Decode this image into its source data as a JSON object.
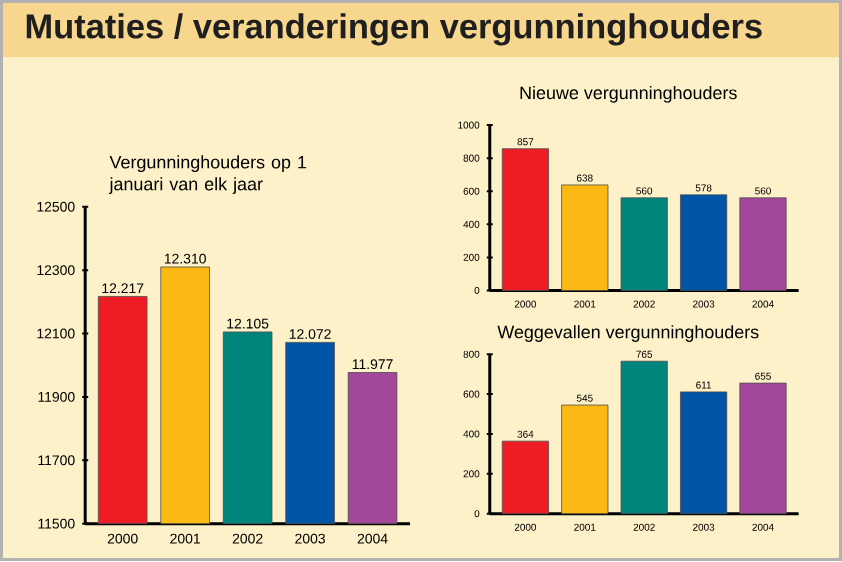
{
  "chart_data": [
    {
      "type": "bar",
      "title": "Mutaties / veranderingen vergunninghouders",
      "subtitle": "Vergunninghouders op 1 januari van elk jaar",
      "categories": [
        "2000",
        "2001",
        "2002",
        "2003",
        "2004"
      ],
      "values": [
        12217,
        12310,
        12105,
        12072,
        11977
      ],
      "value_labels": [
        "12.217",
        "12.310",
        "12.105",
        "12.072",
        "11.977"
      ],
      "colors": [
        "#ee1c25",
        "#fdb913",
        "#00857c",
        "#0054a6",
        "#a3479b"
      ],
      "ylim": [
        11500,
        12500
      ],
      "yticks": [
        11500,
        11700,
        11900,
        12100,
        12300,
        12500
      ]
    },
    {
      "type": "bar",
      "title": "Nieuwe vergunninghouders",
      "categories": [
        "2000",
        "2001",
        "2002",
        "2003",
        "2004"
      ],
      "values": [
        857,
        638,
        560,
        578,
        560
      ],
      "data_labels": true,
      "colors": [
        "#ee1c25",
        "#fdb913",
        "#00857c",
        "#0054a6",
        "#a3479b"
      ],
      "ylim": [
        0,
        1000
      ],
      "yticks": [
        0,
        200,
        400,
        600,
        800,
        1000
      ]
    },
    {
      "type": "bar",
      "title": "Weggevallen vergunninghouders",
      "categories": [
        "2000",
        "2001",
        "2002",
        "2003",
        "2004"
      ],
      "values": [
        364,
        545,
        765,
        611,
        655
      ],
      "data_labels": true,
      "colors": [
        "#ee1c25",
        "#fdb913",
        "#00857c",
        "#0054a6",
        "#a3479b"
      ],
      "ylim": [
        0,
        800
      ],
      "yticks": [
        0,
        200,
        400,
        600,
        800
      ]
    }
  ]
}
